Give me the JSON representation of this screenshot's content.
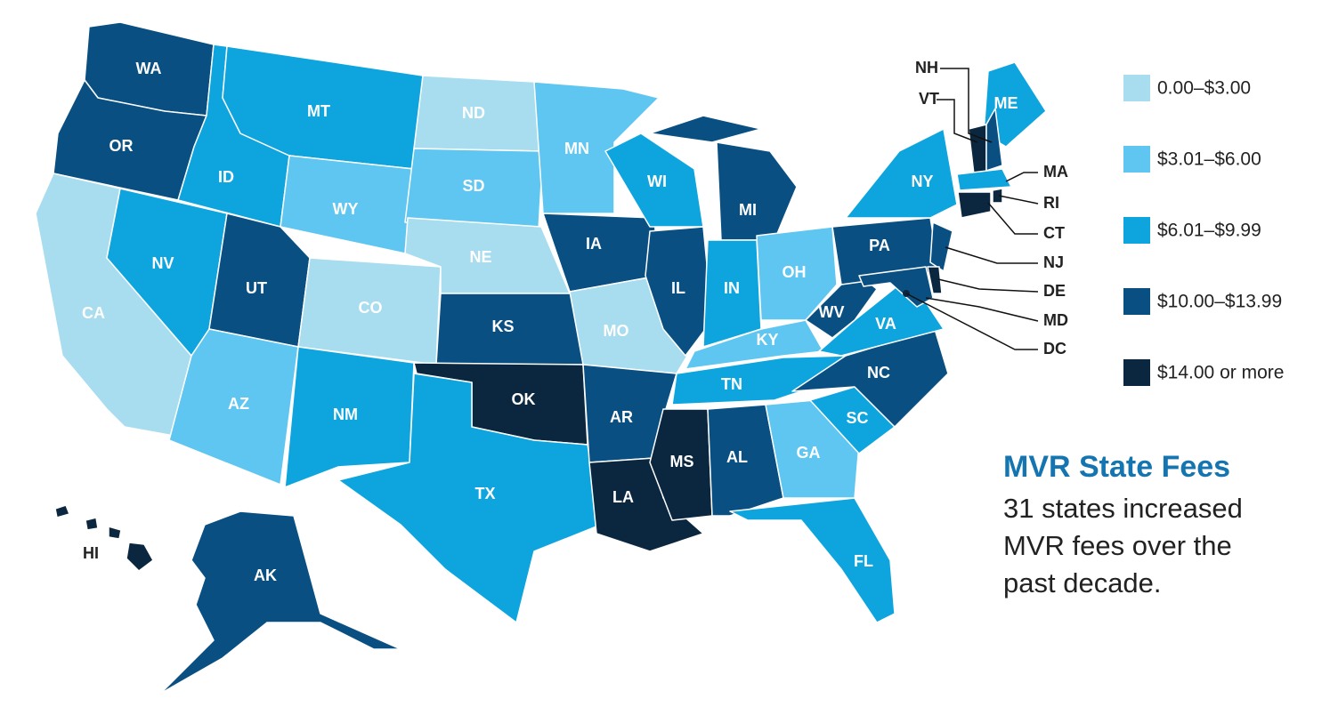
{
  "title": "MVR State Fees",
  "subtitle": [
    "31 states increased",
    "MVR fees over the",
    "past decade."
  ],
  "legend": [
    {
      "label": "0.00–$3.00",
      "color": "#a8dcef"
    },
    {
      "label": "$3.01–$6.00",
      "color": "#5ec6f0"
    },
    {
      "label": "$6.01–$9.99",
      "color": "#0ea5df"
    },
    {
      "label": "$10.00–$13.99",
      "color": "#0a4f82"
    },
    {
      "label": "$14.00 or more",
      "color": "#0b2740"
    }
  ],
  "states": [
    {
      "label": "WA",
      "color": "#0a4f82"
    },
    {
      "label": "OR",
      "color": "#0a4f82"
    },
    {
      "label": "CA",
      "color": "#a8dcef"
    },
    {
      "label": "NV",
      "color": "#0ea5df"
    },
    {
      "label": "ID",
      "color": "#0ea5df"
    },
    {
      "label": "MT",
      "color": "#0ea5df"
    },
    {
      "label": "WY",
      "color": "#5ec6f0"
    },
    {
      "label": "UT",
      "color": "#0a4f82"
    },
    {
      "label": "CO",
      "color": "#a8dcef"
    },
    {
      "label": "AZ",
      "color": "#5ec6f0"
    },
    {
      "label": "NM",
      "color": "#0ea5df"
    },
    {
      "label": "ND",
      "color": "#a8dcef"
    },
    {
      "label": "SD",
      "color": "#5ec6f0"
    },
    {
      "label": "NE",
      "color": "#a8dcef"
    },
    {
      "label": "KS",
      "color": "#0a4f82"
    },
    {
      "label": "OK",
      "color": "#0b2740"
    },
    {
      "label": "TX",
      "color": "#0ea5df"
    },
    {
      "label": "MN",
      "color": "#5ec6f0"
    },
    {
      "label": "IA",
      "color": "#0a4f82"
    },
    {
      "label": "MO",
      "color": "#a8dcef"
    },
    {
      "label": "AR",
      "color": "#0a4f82"
    },
    {
      "label": "LA",
      "color": "#0b2740"
    },
    {
      "label": "WI",
      "color": "#0ea5df"
    },
    {
      "label": "IL",
      "color": "#0a4f82"
    },
    {
      "label": "MS",
      "color": "#0b2740"
    },
    {
      "label": "AL",
      "color": "#0a4f82"
    },
    {
      "label": "MI",
      "color": "#0a4f82"
    },
    {
      "label": "IN",
      "color": "#0ea5df"
    },
    {
      "label": "OH",
      "color": "#5ec6f0"
    },
    {
      "label": "KY",
      "color": "#5ec6f0"
    },
    {
      "label": "TN",
      "color": "#0ea5df"
    },
    {
      "label": "GA",
      "color": "#5ec6f0"
    },
    {
      "label": "FL",
      "color": "#0ea5df"
    },
    {
      "label": "SC",
      "color": "#0ea5df"
    },
    {
      "label": "NC",
      "color": "#0a4f82"
    },
    {
      "label": "VA",
      "color": "#0ea5df"
    },
    {
      "label": "WV",
      "color": "#0a4f82"
    },
    {
      "label": "PA",
      "color": "#0a4f82"
    },
    {
      "label": "NY",
      "color": "#0ea5df"
    },
    {
      "label": "ME",
      "color": "#0ea5df"
    },
    {
      "label": "VT",
      "color": "#0b2740"
    },
    {
      "label": "NH",
      "color": "#0a4f82"
    },
    {
      "label": "MA",
      "color": "#0ea5df"
    },
    {
      "label": "RI",
      "color": "#0b2740"
    },
    {
      "label": "CT",
      "color": "#0b2740"
    },
    {
      "label": "NJ",
      "color": "#0a4f82"
    },
    {
      "label": "DE",
      "color": "#0b2740"
    },
    {
      "label": "MD",
      "color": "#0a4f82"
    },
    {
      "label": "DC",
      "color": "#0b2740"
    },
    {
      "label": "AK",
      "color": "#0a4f82"
    },
    {
      "label": "HI",
      "color": "#0b2740"
    }
  ]
}
